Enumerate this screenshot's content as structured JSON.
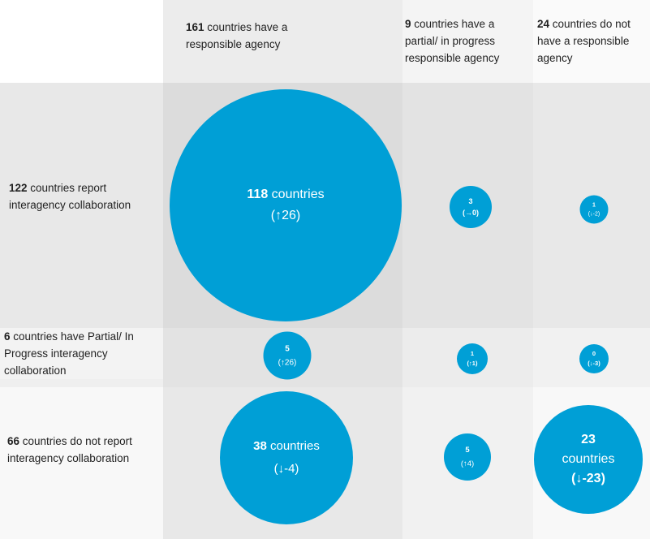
{
  "columns": [
    {
      "count": "161",
      "text": " countries have a responsible agency"
    },
    {
      "count": "9",
      "text": " countries have a partial/ in progress responsible agency"
    },
    {
      "count": "24",
      "text": " countries do not have a responsible agency"
    }
  ],
  "rows": [
    {
      "count": "122",
      "text": " countries report interagency collaboration"
    },
    {
      "count": "6",
      "text": " countries have Partial/ In Progress interagency collaboration"
    },
    {
      "count": "66",
      "text": " countries do not report interagency collaboration"
    }
  ],
  "bubble_color": "#009fd6",
  "cells": [
    [
      {
        "value": "118",
        "unit": " countries",
        "change": "(↑26)"
      },
      {
        "value": "3",
        "change": "(→0)"
      },
      {
        "value": "1",
        "change": "(↓-2)"
      }
    ],
    [
      {
        "value": "5",
        "change": "(↑26)"
      },
      {
        "value": "1",
        "change": "(↑1)"
      },
      {
        "value": "0",
        "change": "(↓-3)"
      }
    ],
    [
      {
        "value": "38",
        "unit": " countries",
        "change": "(↓-4)"
      },
      {
        "value": "5",
        "change": "(↑4)"
      },
      {
        "value": "23",
        "unit": "countries",
        "change": "(↓-23)"
      }
    ]
  ]
}
